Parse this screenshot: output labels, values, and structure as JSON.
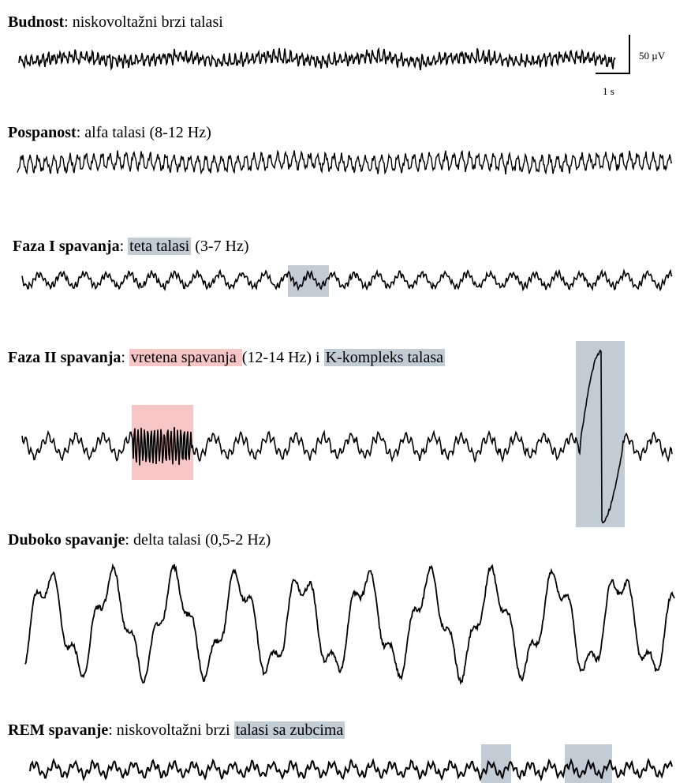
{
  "panels": [
    {
      "id": "budnost",
      "bold": "Budnost",
      "rest": ": niskovoltažni brzi talasi",
      "hl1": "",
      "between": "",
      "hl2": ""
    },
    {
      "id": "pospanost",
      "bold": "Pospanost",
      "rest": ": alfa talasi (8-12 Hz)",
      "hl1": "",
      "between": "",
      "hl2": ""
    },
    {
      "id": "faza1",
      "bold": "Faza I spavanja",
      "rest": ": ",
      "hl1": "teta talasi",
      "after1": " (3-7 Hz)"
    },
    {
      "id": "faza2",
      "bold": "Faza II spavanja",
      "rest": ": ",
      "hl1": "vretena spavanja ",
      "after1": " (12-14 Hz) i ",
      "hl2": "K-kompleks talasa"
    },
    {
      "id": "duboko",
      "bold": "Duboko spavanje",
      "rest": ": delta talasi (0,5-2 Hz)"
    },
    {
      "id": "rem",
      "bold": "REM spavanje",
      "rest": ": niskovoltažni brzi ",
      "hl1": "talasi sa zubcima "
    }
  ],
  "scale_bar": {
    "amplitude": "50 µV",
    "time": "1 s"
  },
  "colors": {
    "highlight_blue": "#c1ccd5",
    "highlight_red": "#f6c6c6",
    "trace": "#000000"
  }
}
